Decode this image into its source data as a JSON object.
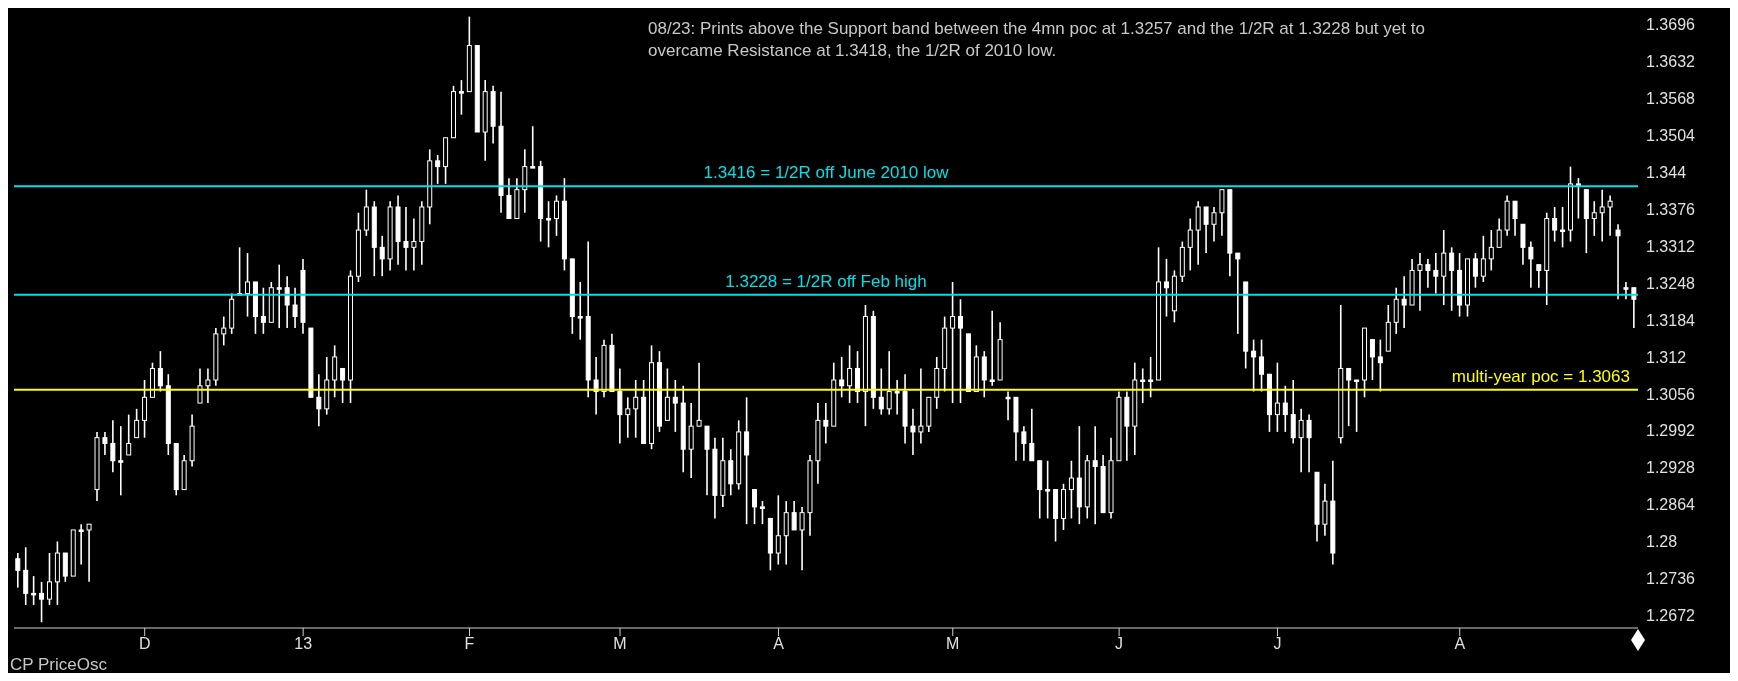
{
  "chart_data": {
    "type": "candlestick",
    "annotations": [
      "08/23: Prints above the Support band between the 4mn poc at 1.3257 and the 1/2R at 1.3228 but yet to overcame Resistance at  1.3418, the 1/2R of 2010 low.",
      "CP PriceOsc"
    ],
    "color": "#ffffff",
    "ylim": [
      1.265,
      1.3725
    ],
    "yticks": [
      1.2672,
      1.2736,
      1.28,
      1.2864,
      1.2928,
      1.2992,
      1.3056,
      1.312,
      1.3184,
      1.3248,
      1.3312,
      1.3376,
      1.344,
      1.3504,
      1.3568,
      1.3632,
      1.3696
    ],
    "ref_lines": [
      {
        "axis": "y",
        "value": 1.3416,
        "label": "1.3416 = 1/2R off June 2010 low",
        "color": "#00e0e8"
      },
      {
        "axis": "y",
        "value": 1.3228,
        "label": "1.3228 = 1/2R off Feb high",
        "color": "#00e0e8"
      },
      {
        "axis": "y",
        "value": 1.3063,
        "label": "multi-year poc = 1.3063",
        "color": "#ffff00"
      }
    ],
    "categories": [
      null,
      null,
      null,
      null,
      null,
      null,
      null,
      null,
      null,
      null,
      null,
      null,
      null,
      null,
      null,
      null,
      "D",
      null,
      null,
      null,
      null,
      null,
      null,
      null,
      null,
      null,
      null,
      null,
      null,
      null,
      null,
      null,
      null,
      null,
      null,
      null,
      "13",
      null,
      null,
      null,
      null,
      null,
      null,
      null,
      null,
      null,
      null,
      null,
      null,
      null,
      null,
      null,
      null,
      null,
      null,
      null,
      null,
      "F",
      null,
      null,
      null,
      null,
      null,
      null,
      null,
      null,
      null,
      null,
      null,
      null,
      null,
      null,
      null,
      null,
      null,
      null,
      "M",
      null,
      null,
      null,
      null,
      null,
      null,
      null,
      null,
      null,
      null,
      null,
      null,
      null,
      null,
      null,
      null,
      null,
      null,
      null,
      "A",
      null,
      null,
      null,
      null,
      null,
      null,
      null,
      null,
      null,
      null,
      null,
      null,
      null,
      null,
      null,
      null,
      null,
      null,
      null,
      null,
      null,
      "M",
      null,
      null,
      null,
      null,
      null,
      null,
      null,
      null,
      null,
      null,
      null,
      null,
      null,
      null,
      null,
      null,
      null,
      null,
      null,
      null,
      "J",
      null,
      null,
      null,
      null,
      null,
      null,
      null,
      null,
      null,
      null,
      null,
      null,
      null,
      null,
      null,
      null,
      null,
      null,
      null,
      "J",
      null,
      null,
      null,
      null,
      null,
      null,
      null,
      null,
      null,
      null,
      null,
      null,
      null,
      null,
      null,
      null,
      null,
      null,
      null,
      null,
      null,
      null,
      "A",
      null,
      null,
      null,
      null,
      null,
      null,
      null,
      null,
      null,
      null,
      null,
      null,
      null,
      null,
      null,
      null,
      null,
      null,
      null,
      null,
      null,
      null
    ],
    "ohlc": [
      [
        1.277,
        1.278,
        1.272,
        1.275
      ],
      [
        1.275,
        1.279,
        1.269,
        1.271
      ],
      [
        1.271,
        1.274,
        1.269,
        1.271
      ],
      [
        1.271,
        1.273,
        1.266,
        1.27
      ],
      [
        1.27,
        1.278,
        1.269,
        1.273
      ],
      [
        1.273,
        1.28,
        1.269,
        1.278
      ],
      [
        1.278,
        1.278,
        1.273,
        1.274
      ],
      [
        1.274,
        1.282,
        1.274,
        1.282
      ],
      [
        1.282,
        1.283,
        1.276,
        1.282
      ],
      [
        1.282,
        1.283,
        1.273,
        1.283
      ],
      [
        1.289,
        1.299,
        1.287,
        1.298
      ],
      [
        1.298,
        1.299,
        1.295,
        1.297
      ],
      [
        1.297,
        1.301,
        1.292,
        1.294
      ],
      [
        1.294,
        1.3,
        1.288,
        1.294
      ],
      [
        1.295,
        1.302,
        1.295,
        1.297
      ],
      [
        1.298,
        1.303,
        1.298,
        1.301
      ],
      [
        1.301,
        1.308,
        1.298,
        1.305
      ],
      [
        1.305,
        1.311,
        1.305,
        1.31
      ],
      [
        1.31,
        1.313,
        1.306,
        1.307
      ],
      [
        1.307,
        1.309,
        1.295,
        1.297
      ],
      [
        1.297,
        1.297,
        1.288,
        1.289
      ],
      [
        1.289,
        1.295,
        1.289,
        1.294
      ],
      [
        1.294,
        1.302,
        1.293,
        1.3
      ],
      [
        1.304,
        1.31,
        1.304,
        1.307
      ],
      [
        1.307,
        1.31,
        1.304,
        1.308
      ],
      [
        1.308,
        1.317,
        1.307,
        1.316
      ],
      [
        1.316,
        1.319,
        1.314,
        1.317
      ],
      [
        1.317,
        1.323,
        1.316,
        1.322
      ],
      [
        1.323,
        1.331,
        1.323,
        1.323
      ],
      [
        1.323,
        1.33,
        1.319,
        1.325
      ],
      [
        1.325,
        1.325,
        1.316,
        1.319
      ],
      [
        1.319,
        1.324,
        1.316,
        1.318
      ],
      [
        1.318,
        1.325,
        1.318,
        1.324
      ],
      [
        1.324,
        1.328,
        1.317,
        1.324
      ],
      [
        1.324,
        1.326,
        1.317,
        1.321
      ],
      [
        1.321,
        1.324,
        1.317,
        1.319
      ],
      [
        1.327,
        1.329,
        1.316,
        1.318
      ],
      [
        1.317,
        1.317,
        1.305,
        1.305
      ],
      [
        1.305,
        1.309,
        1.3,
        1.303
      ],
      [
        1.303,
        1.312,
        1.302,
        1.308
      ],
      [
        1.308,
        1.314,
        1.305,
        1.312
      ],
      [
        1.31,
        1.31,
        1.304,
        1.308
      ],
      [
        1.308,
        1.327,
        1.304,
        1.326
      ],
      [
        1.326,
        1.337,
        1.325,
        1.334
      ],
      [
        1.334,
        1.341,
        1.333,
        1.338
      ],
      [
        1.338,
        1.339,
        1.326,
        1.331
      ],
      [
        1.331,
        1.333,
        1.326,
        1.329
      ],
      [
        1.329,
        1.339,
        1.327,
        1.338
      ],
      [
        1.338,
        1.34,
        1.328,
        1.332
      ],
      [
        1.332,
        1.338,
        1.327,
        1.331
      ],
      [
        1.331,
        1.336,
        1.327,
        1.332
      ],
      [
        1.332,
        1.339,
        1.328,
        1.338
      ],
      [
        1.338,
        1.348,
        1.335,
        1.346
      ],
      [
        1.346,
        1.347,
        1.342,
        1.345
      ],
      [
        1.345,
        1.35,
        1.342,
        1.35
      ],
      [
        1.35,
        1.359,
        1.35,
        1.358
      ],
      [
        1.358,
        1.36,
        1.354,
        1.358
      ],
      [
        1.358,
        1.371,
        1.358,
        1.366
      ],
      [
        1.366,
        1.366,
        1.351,
        1.351
      ],
      [
        1.351,
        1.36,
        1.346,
        1.358
      ],
      [
        1.358,
        1.359,
        1.349,
        1.352
      ],
      [
        1.352,
        1.358,
        1.337,
        1.34
      ],
      [
        1.34,
        1.343,
        1.336,
        1.336
      ],
      [
        1.336,
        1.343,
        1.336,
        1.341
      ],
      [
        1.341,
        1.348,
        1.337,
        1.345
      ],
      [
        1.345,
        1.352,
        1.345,
        1.345
      ],
      [
        1.345,
        1.346,
        1.332,
        1.336
      ],
      [
        1.336,
        1.339,
        1.331,
        1.336
      ],
      [
        1.336,
        1.34,
        1.333,
        1.339
      ],
      [
        1.339,
        1.343,
        1.327,
        1.329
      ],
      [
        1.329,
        1.329,
        1.316,
        1.319
      ],
      [
        1.319,
        1.325,
        1.315,
        1.319
      ],
      [
        1.319,
        1.332,
        1.305,
        1.308
      ],
      [
        1.308,
        1.312,
        1.302,
        1.306
      ],
      [
        1.306,
        1.315,
        1.305,
        1.314
      ],
      [
        1.314,
        1.316,
        1.306,
        1.306
      ],
      [
        1.306,
        1.31,
        1.297,
        1.302
      ],
      [
        1.302,
        1.305,
        1.298,
        1.303
      ],
      [
        1.303,
        1.308,
        1.298,
        1.305
      ],
      [
        1.305,
        1.308,
        1.297,
        1.297
      ],
      [
        1.297,
        1.314,
        1.296,
        1.311
      ],
      [
        1.311,
        1.313,
        1.299,
        1.3
      ],
      [
        1.301,
        1.31,
        1.301,
        1.305
      ],
      [
        1.305,
        1.308,
        1.299,
        1.304
      ],
      [
        1.304,
        1.307,
        1.292,
        1.296
      ],
      [
        1.296,
        1.304,
        1.291,
        1.3
      ],
      [
        1.3,
        1.311,
        1.3,
        1.301
      ],
      [
        1.3,
        1.3,
        1.288,
        1.296
      ],
      [
        1.296,
        1.298,
        1.284,
        1.288
      ],
      [
        1.288,
        1.298,
        1.286,
        1.294
      ],
      [
        1.294,
        1.296,
        1.288,
        1.29
      ],
      [
        1.29,
        1.301,
        1.289,
        1.299
      ],
      [
        1.299,
        1.305,
        1.283,
        1.295
      ],
      [
        1.289,
        1.289,
        1.283,
        1.286
      ],
      [
        1.286,
        1.287,
        1.283,
        1.286
      ],
      [
        1.284,
        1.284,
        1.275,
        1.278
      ],
      [
        1.278,
        1.288,
        1.276,
        1.281
      ],
      [
        1.281,
        1.287,
        1.276,
        1.285
      ],
      [
        1.285,
        1.287,
        1.282,
        1.282
      ],
      [
        1.282,
        1.286,
        1.275,
        1.285
      ],
      [
        1.285,
        1.295,
        1.281,
        1.294
      ],
      [
        1.294,
        1.304,
        1.29,
        1.301
      ],
      [
        1.301,
        1.304,
        1.297,
        1.3
      ],
      [
        1.3,
        1.311,
        1.3,
        1.308
      ],
      [
        1.308,
        1.312,
        1.305,
        1.307
      ],
      [
        1.307,
        1.314,
        1.304,
        1.31
      ],
      [
        1.31,
        1.313,
        1.304,
        1.306
      ],
      [
        1.306,
        1.321,
        1.3,
        1.319
      ],
      [
        1.319,
        1.32,
        1.303,
        1.305
      ],
      [
        1.305,
        1.31,
        1.302,
        1.303
      ],
      [
        1.303,
        1.313,
        1.302,
        1.306
      ],
      [
        1.306,
        1.308,
        1.302,
        1.306
      ],
      [
        1.306,
        1.309,
        1.297,
        1.3
      ],
      [
        1.3,
        1.303,
        1.295,
        1.299
      ],
      [
        1.299,
        1.31,
        1.297,
        1.3
      ],
      [
        1.3,
        1.305,
        1.299,
        1.305
      ],
      [
        1.305,
        1.312,
        1.303,
        1.31
      ],
      [
        1.31,
        1.319,
        1.306,
        1.317
      ],
      [
        1.317,
        1.325,
        1.304,
        1.319
      ],
      [
        1.319,
        1.322,
        1.304,
        1.317
      ],
      [
        1.316,
        1.316,
        1.306,
        1.306
      ],
      [
        1.306,
        1.314,
        1.306,
        1.312
      ],
      [
        1.312,
        1.313,
        1.305,
        1.308
      ],
      [
        1.308,
        1.32,
        1.307,
        1.308
      ],
      [
        1.308,
        1.318,
        1.308,
        1.315
      ],
      [
        1.305,
        1.306,
        1.301,
        1.305
      ],
      [
        1.305,
        1.305,
        1.294,
        1.299
      ],
      [
        1.299,
        1.3,
        1.294,
        1.297
      ],
      [
        1.297,
        1.303,
        1.294,
        1.294
      ],
      [
        1.294,
        1.294,
        1.284,
        1.289
      ],
      [
        1.289,
        1.294,
        1.284,
        1.289
      ],
      [
        1.289,
        1.289,
        1.28,
        1.284
      ],
      [
        1.284,
        1.29,
        1.282,
        1.289
      ],
      [
        1.289,
        1.294,
        1.284,
        1.291
      ],
      [
        1.291,
        1.3,
        1.283,
        1.286
      ],
      [
        1.286,
        1.295,
        1.284,
        1.294
      ],
      [
        1.294,
        1.3,
        1.283,
        1.293
      ],
      [
        1.293,
        1.295,
        1.285,
        1.285
      ],
      [
        1.285,
        1.298,
        1.284,
        1.294
      ],
      [
        1.294,
        1.306,
        1.294,
        1.305
      ],
      [
        1.305,
        1.306,
        1.294,
        1.3
      ],
      [
        1.3,
        1.311,
        1.295,
        1.308
      ],
      [
        1.308,
        1.31,
        1.304,
        1.308
      ],
      [
        1.308,
        1.312,
        1.305,
        1.308
      ],
      [
        1.308,
        1.331,
        1.308,
        1.325
      ],
      [
        1.325,
        1.329,
        1.319,
        1.324
      ],
      [
        1.32,
        1.327,
        1.318,
        1.326
      ],
      [
        1.326,
        1.332,
        1.325,
        1.331
      ],
      [
        1.331,
        1.336,
        1.327,
        1.334
      ],
      [
        1.334,
        1.339,
        1.328,
        1.338
      ],
      [
        1.338,
        1.338,
        1.33,
        1.335
      ],
      [
        1.335,
        1.338,
        1.332,
        1.337
      ],
      [
        1.337,
        1.341,
        1.333,
        1.341
      ],
      [
        1.341,
        1.341,
        1.326,
        1.33
      ],
      [
        1.33,
        1.33,
        1.316,
        1.329
      ],
      [
        1.325,
        1.325,
        1.31,
        1.313
      ],
      [
        1.313,
        1.315,
        1.306,
        1.312
      ],
      [
        1.312,
        1.315,
        1.306,
        1.309
      ],
      [
        1.309,
        1.309,
        1.299,
        1.302
      ],
      [
        1.302,
        1.311,
        1.299,
        1.304
      ],
      [
        1.304,
        1.307,
        1.299,
        1.302
      ],
      [
        1.302,
        1.308,
        1.297,
        1.298
      ],
      [
        1.298,
        1.303,
        1.292,
        1.301
      ],
      [
        1.301,
        1.302,
        1.292,
        1.298
      ],
      [
        1.292,
        1.292,
        1.28,
        1.283
      ],
      [
        1.283,
        1.29,
        1.281,
        1.287
      ],
      [
        1.287,
        1.294,
        1.276,
        1.278
      ],
      [
        1.298,
        1.321,
        1.297,
        1.31
      ],
      [
        1.31,
        1.31,
        1.3,
        1.308
      ],
      [
        1.308,
        1.308,
        1.299,
        1.308
      ],
      [
        1.308,
        1.317,
        1.305,
        1.317
      ],
      [
        1.315,
        1.315,
        1.308,
        1.312
      ],
      [
        1.312,
        1.315,
        1.306,
        1.311
      ],
      [
        1.313,
        1.321,
        1.313,
        1.318
      ],
      [
        1.318,
        1.324,
        1.316,
        1.322
      ],
      [
        1.322,
        1.326,
        1.317,
        1.321
      ],
      [
        1.321,
        1.329,
        1.321,
        1.327
      ],
      [
        1.327,
        1.33,
        1.32,
        1.328
      ],
      [
        1.328,
        1.329,
        1.324,
        1.327
      ],
      [
        1.327,
        1.33,
        1.323,
        1.326
      ],
      [
        1.326,
        1.334,
        1.321,
        1.33
      ],
      [
        1.33,
        1.331,
        1.32,
        1.327
      ],
      [
        1.327,
        1.33,
        1.319,
        1.321
      ],
      [
        1.321,
        1.329,
        1.319,
        1.329
      ],
      [
        1.329,
        1.33,
        1.324,
        1.326
      ],
      [
        1.326,
        1.333,
        1.325,
        1.329
      ],
      [
        1.329,
        1.334,
        1.327,
        1.331
      ],
      [
        1.331,
        1.336,
        1.331,
        1.334
      ],
      [
        1.334,
        1.34,
        1.333,
        1.339
      ],
      [
        1.339,
        1.339,
        1.333,
        1.336
      ],
      [
        1.335,
        1.335,
        1.328,
        1.331
      ],
      [
        1.331,
        1.332,
        1.324,
        1.329
      ],
      [
        1.328,
        1.328,
        1.324,
        1.327
      ],
      [
        1.327,
        1.337,
        1.321,
        1.336
      ],
      [
        1.336,
        1.338,
        1.332,
        1.334
      ],
      [
        1.334,
        1.338,
        1.331,
        1.334
      ],
      [
        1.334,
        1.345,
        1.332,
        1.342
      ],
      [
        1.342,
        1.343,
        1.336,
        1.342
      ],
      [
        1.341,
        1.341,
        1.33,
        1.336
      ],
      [
        1.336,
        1.339,
        1.333,
        1.337
      ],
      [
        1.337,
        1.341,
        1.332,
        1.338
      ],
      [
        1.338,
        1.34,
        1.333,
        1.339
      ],
      [
        1.334,
        1.335,
        1.322,
        1.333
      ],
      [
        1.324,
        1.325,
        1.322,
        1.324
      ],
      [
        1.324,
        1.324,
        1.317,
        1.322
      ]
    ]
  }
}
